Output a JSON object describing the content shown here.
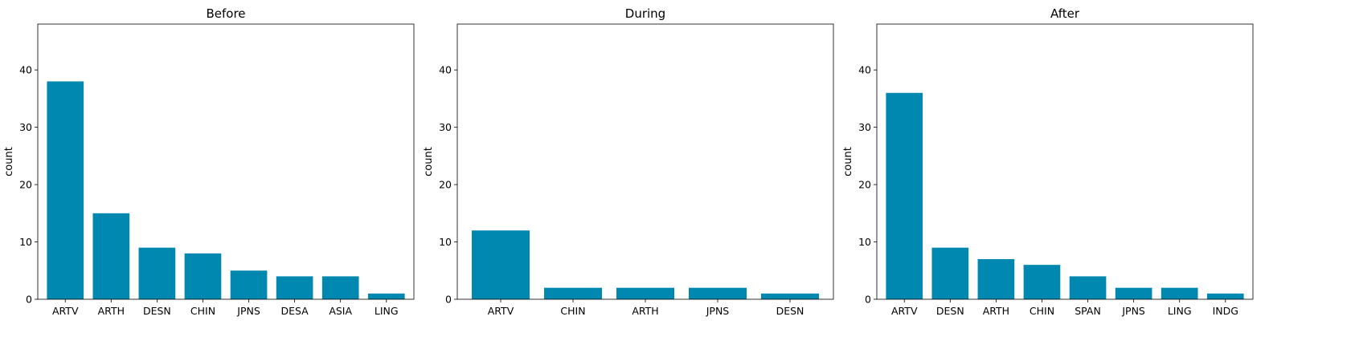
{
  "chart_data": [
    {
      "type": "bar",
      "title": "Before",
      "xlabel": "",
      "ylabel": "count",
      "ylim": [
        0,
        48
      ],
      "yticks": [
        0,
        10,
        20,
        30,
        40
      ],
      "bar_color": "#0088b0",
      "categories": [
        "ARTV",
        "ARTH",
        "DESN",
        "CHIN",
        "JPNS",
        "DESA",
        "ASIA",
        "LING"
      ],
      "values": [
        38,
        15,
        9,
        8,
        5,
        4,
        4,
        1
      ]
    },
    {
      "type": "bar",
      "title": "During",
      "xlabel": "",
      "ylabel": "count",
      "ylim": [
        0,
        48
      ],
      "yticks": [
        0,
        10,
        20,
        30,
        40
      ],
      "bar_color": "#0088b0",
      "categories": [
        "ARTV",
        "CHIN",
        "ARTH",
        "JPNS",
        "DESN"
      ],
      "values": [
        12,
        2,
        2,
        2,
        1
      ]
    },
    {
      "type": "bar",
      "title": "After",
      "xlabel": "",
      "ylabel": "count",
      "ylim": [
        0,
        48
      ],
      "yticks": [
        0,
        10,
        20,
        30,
        40
      ],
      "bar_color": "#0088b0",
      "categories": [
        "ARTV",
        "DESN",
        "ARTH",
        "CHIN",
        "SPAN",
        "JPNS",
        "LING",
        "INDG"
      ],
      "values": [
        36,
        9,
        7,
        6,
        4,
        2,
        2,
        1
      ]
    }
  ]
}
